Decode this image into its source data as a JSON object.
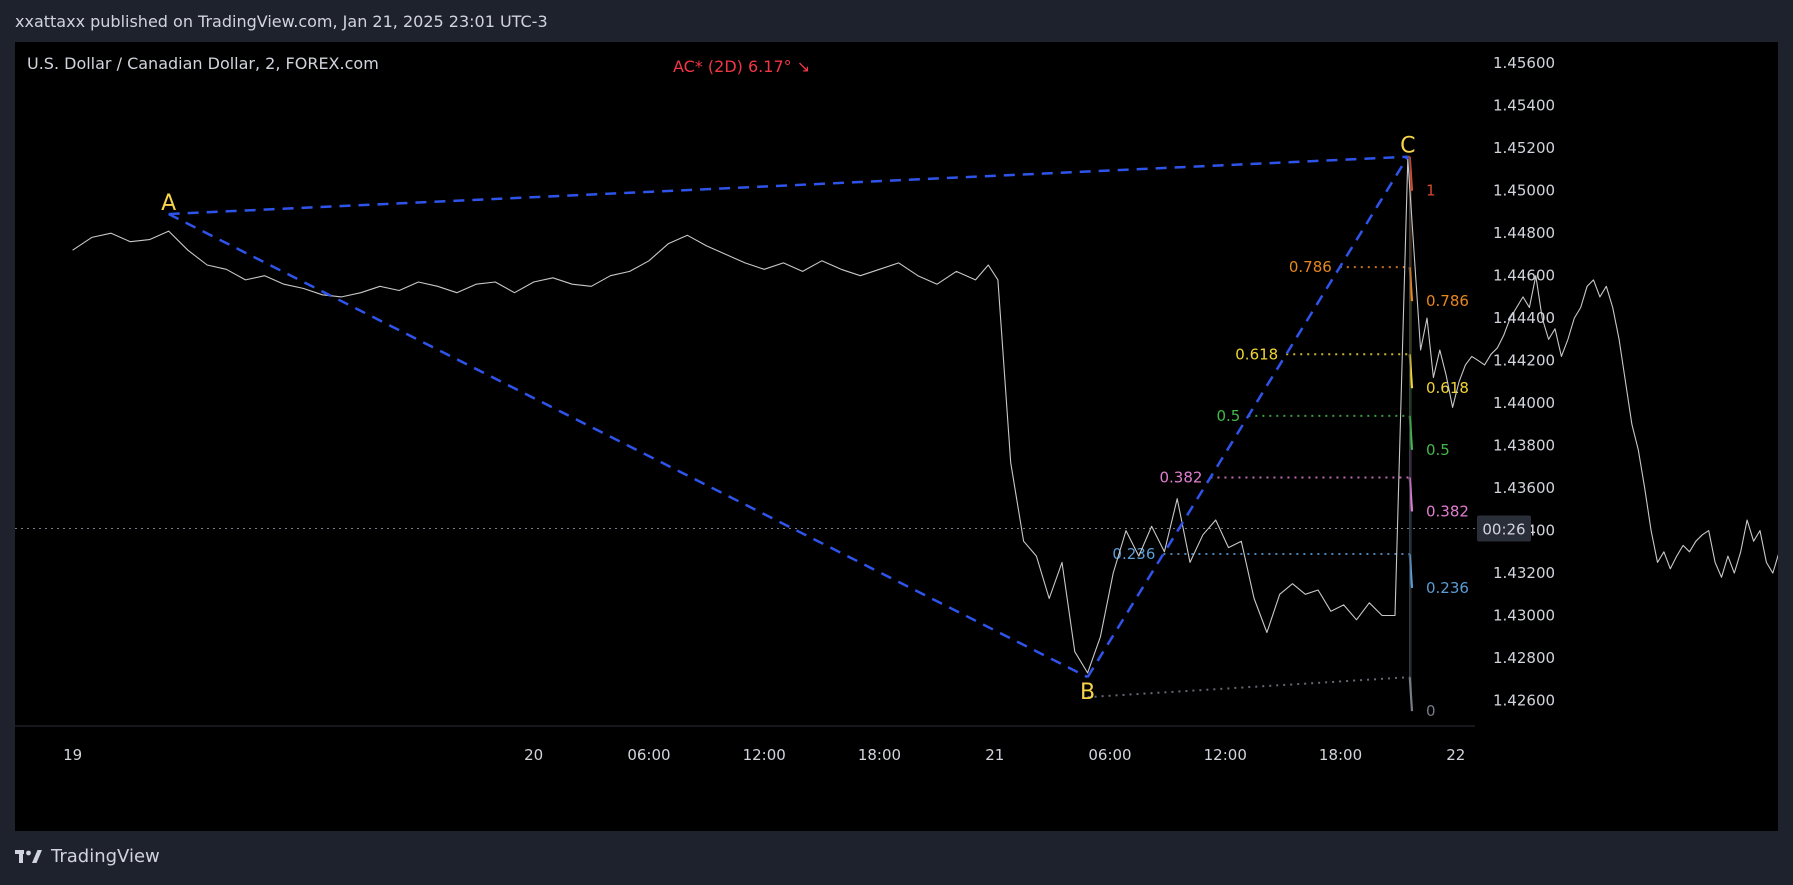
{
  "header": {
    "publish_line": "xxattaxx published on TradingView.com, Jan 21, 2025 23:01 UTC-3"
  },
  "symbol": {
    "title": "U.S. Dollar / Canadian Dollar, 2, FOREX.com"
  },
  "annotation": {
    "angle_label": "AC* (2D) 6.17°  ↘"
  },
  "footer": {
    "brand": "TradingView"
  },
  "price_badge": {
    "label": "00:26"
  },
  "colors": {
    "background": "#000000",
    "frame": "#1e222d",
    "text": "#d1d4dc",
    "pattern_line": "#2f54eb",
    "pivot_label": "#f7d44a",
    "price_line": "#c8c8c8"
  },
  "chart_data": {
    "type": "line",
    "title": "U.S. Dollar / Canadian Dollar, 2, FOREX.com",
    "xlabel": "",
    "ylabel": "",
    "x_range": [
      "2025-01-18T21:00",
      "2025-01-22T01:00"
    ],
    "ylim": [
      1.4248,
      1.457
    ],
    "y_axis_position": "right",
    "grid": false,
    "y_ticks": [
      "1.45600",
      "1.45400",
      "1.45200",
      "1.45000",
      "1.44800",
      "1.44600",
      "1.44400",
      "1.44200",
      "1.44000",
      "1.43800",
      "1.43600",
      "1.43400",
      "1.43200",
      "1.43000",
      "1.42800",
      "1.42600"
    ],
    "x_ticks": [
      {
        "label": "19",
        "t": "2025-01-19T00:00"
      },
      {
        "label": "20",
        "t": "2025-01-20T00:00"
      },
      {
        "label": "06:00",
        "t": "2025-01-20T06:00"
      },
      {
        "label": "12:00",
        "t": "2025-01-20T12:00"
      },
      {
        "label": "18:00",
        "t": "2025-01-20T18:00"
      },
      {
        "label": "21",
        "t": "2025-01-21T00:00"
      },
      {
        "label": "06:00",
        "t": "2025-01-21T06:00"
      },
      {
        "label": "12:00",
        "t": "2025-01-21T12:00"
      },
      {
        "label": "18:00",
        "t": "2025-01-21T18:00"
      },
      {
        "label": "22",
        "t": "2025-01-22T00:00"
      }
    ],
    "price_series": [
      {
        "t": "2025-01-19T00:00",
        "y": 1.4472
      },
      {
        "t": "2025-01-19T01:00",
        "y": 1.4478
      },
      {
        "t": "2025-01-19T02:00",
        "y": 1.448
      },
      {
        "t": "2025-01-19T03:00",
        "y": 1.4476
      },
      {
        "t": "2025-01-19T04:00",
        "y": 1.4477
      },
      {
        "t": "2025-01-19T05:00",
        "y": 1.4481
      },
      {
        "t": "2025-01-19T06:00",
        "y": 1.4472
      },
      {
        "t": "2025-01-19T07:00",
        "y": 1.4465
      },
      {
        "t": "2025-01-19T08:00",
        "y": 1.4463
      },
      {
        "t": "2025-01-19T09:00",
        "y": 1.4458
      },
      {
        "t": "2025-01-19T10:00",
        "y": 1.446
      },
      {
        "t": "2025-01-19T11:00",
        "y": 1.4456
      },
      {
        "t": "2025-01-19T12:00",
        "y": 1.4454
      },
      {
        "t": "2025-01-19T13:00",
        "y": 1.4451
      },
      {
        "t": "2025-01-19T14:00",
        "y": 1.445
      },
      {
        "t": "2025-01-19T15:00",
        "y": 1.4452
      },
      {
        "t": "2025-01-19T16:00",
        "y": 1.4455
      },
      {
        "t": "2025-01-19T17:00",
        "y": 1.4453
      },
      {
        "t": "2025-01-19T18:00",
        "y": 1.4457
      },
      {
        "t": "2025-01-19T19:00",
        "y": 1.4455
      },
      {
        "t": "2025-01-19T20:00",
        "y": 1.4452
      },
      {
        "t": "2025-01-19T21:00",
        "y": 1.4456
      },
      {
        "t": "2025-01-19T22:00",
        "y": 1.4457
      },
      {
        "t": "2025-01-19T23:00",
        "y": 1.4452
      },
      {
        "t": "2025-01-20T00:00",
        "y": 1.4457
      },
      {
        "t": "2025-01-20T01:00",
        "y": 1.4459
      },
      {
        "t": "2025-01-20T02:00",
        "y": 1.4456
      },
      {
        "t": "2025-01-20T03:00",
        "y": 1.4455
      },
      {
        "t": "2025-01-20T04:00",
        "y": 1.446
      },
      {
        "t": "2025-01-20T05:00",
        "y": 1.4462
      },
      {
        "t": "2025-01-20T06:00",
        "y": 1.4467
      },
      {
        "t": "2025-01-20T07:00",
        "y": 1.4475
      },
      {
        "t": "2025-01-20T08:00",
        "y": 1.4479
      },
      {
        "t": "2025-01-20T09:00",
        "y": 1.4474
      },
      {
        "t": "2025-01-20T10:00",
        "y": 1.447
      },
      {
        "t": "2025-01-20T11:00",
        "y": 1.4466
      },
      {
        "t": "2025-01-20T12:00",
        "y": 1.4463
      },
      {
        "t": "2025-01-20T13:00",
        "y": 1.4466
      },
      {
        "t": "2025-01-20T14:00",
        "y": 1.4462
      },
      {
        "t": "2025-01-20T15:00",
        "y": 1.4467
      },
      {
        "t": "2025-01-20T16:00",
        "y": 1.4463
      },
      {
        "t": "2025-01-20T17:00",
        "y": 1.446
      },
      {
        "t": "2025-01-20T18:00",
        "y": 1.4463
      },
      {
        "t": "2025-01-20T19:00",
        "y": 1.4466
      },
      {
        "t": "2025-01-20T20:00",
        "y": 1.446
      },
      {
        "t": "2025-01-20T21:00",
        "y": 1.4456
      },
      {
        "t": "2025-01-20T22:00",
        "y": 1.4462
      },
      {
        "t": "2025-01-20T23:00",
        "y": 1.4458
      },
      {
        "t": "2025-01-20T23:40",
        "y": 1.4465
      },
      {
        "t": "2025-01-21T00:10",
        "y": 1.4458
      },
      {
        "t": "2025-01-21T00:50",
        "y": 1.4372
      },
      {
        "t": "2025-01-21T01:30",
        "y": 1.4335
      },
      {
        "t": "2025-01-21T02:10",
        "y": 1.4328
      },
      {
        "t": "2025-01-21T02:50",
        "y": 1.4308
      },
      {
        "t": "2025-01-21T03:30",
        "y": 1.4325
      },
      {
        "t": "2025-01-21T04:10",
        "y": 1.4283
      },
      {
        "t": "2025-01-21T04:50",
        "y": 1.4273
      },
      {
        "t": "2025-01-21T05:30",
        "y": 1.429
      },
      {
        "t": "2025-01-21T06:10",
        "y": 1.432
      },
      {
        "t": "2025-01-21T06:50",
        "y": 1.434
      },
      {
        "t": "2025-01-21T07:30",
        "y": 1.4328
      },
      {
        "t": "2025-01-21T08:10",
        "y": 1.4342
      },
      {
        "t": "2025-01-21T08:50",
        "y": 1.433
      },
      {
        "t": "2025-01-21T09:30",
        "y": 1.4355
      },
      {
        "t": "2025-01-21T10:10",
        "y": 1.4325
      },
      {
        "t": "2025-01-21T10:50",
        "y": 1.4338
      },
      {
        "t": "2025-01-21T11:30",
        "y": 1.4345
      },
      {
        "t": "2025-01-21T12:10",
        "y": 1.4332
      },
      {
        "t": "2025-01-21T12:50",
        "y": 1.4335
      },
      {
        "t": "2025-01-21T13:30",
        "y": 1.4308
      },
      {
        "t": "2025-01-21T14:10",
        "y": 1.4292
      },
      {
        "t": "2025-01-21T14:50",
        "y": 1.431
      },
      {
        "t": "2025-01-21T15:30",
        "y": 1.4315
      },
      {
        "t": "2025-01-21T16:10",
        "y": 1.431
      },
      {
        "t": "2025-01-21T16:50",
        "y": 1.4312
      },
      {
        "t": "2025-01-21T17:30",
        "y": 1.4302
      },
      {
        "t": "2025-01-21T18:10",
        "y": 1.4305
      },
      {
        "t": "2025-01-21T18:50",
        "y": 1.4298
      },
      {
        "t": "2025-01-21T19:30",
        "y": 1.4306
      },
      {
        "t": "2025-01-21T20:10",
        "y": 1.43
      },
      {
        "t": "2025-01-21T20:50",
        "y": 1.43
      },
      {
        "t": "2025-01-21T21:30",
        "y": 1.4515
      },
      {
        "t": "2025-01-21T21:50",
        "y": 1.447
      },
      {
        "t": "2025-01-21T22:10",
        "y": 1.4425
      },
      {
        "t": "2025-01-21T22:30",
        "y": 1.444
      },
      {
        "t": "2025-01-21T22:50",
        "y": 1.4412
      },
      {
        "t": "2025-01-21T23:10",
        "y": 1.4425
      },
      {
        "t": "2025-01-21T23:30",
        "y": 1.4413
      },
      {
        "t": "2025-01-21T23:50",
        "y": 1.4398
      },
      {
        "t": "2025-01-22T00:10",
        "y": 1.441
      },
      {
        "t": "2025-01-22T00:30",
        "y": 1.4418
      },
      {
        "t": "2025-01-22T00:50",
        "y": 1.4422
      },
      {
        "t": "2025-01-22T01:10",
        "y": 1.442
      },
      {
        "t": "2025-01-22T01:30",
        "y": 1.4418
      },
      {
        "t": "2025-01-22T01:50",
        "y": 1.4423
      },
      {
        "t": "2025-01-22T02:10",
        "y": 1.4426
      },
      {
        "t": "2025-01-22T02:30",
        "y": 1.4432
      },
      {
        "t": "2025-01-22T02:50",
        "y": 1.444
      },
      {
        "t": "2025-01-22T03:10",
        "y": 1.4445
      },
      {
        "t": "2025-01-22T03:30",
        "y": 1.445
      },
      {
        "t": "2025-01-22T03:50",
        "y": 1.4445
      },
      {
        "t": "2025-01-22T04:10",
        "y": 1.446
      },
      {
        "t": "2025-01-22T04:30",
        "y": 1.444
      },
      {
        "t": "2025-01-22T04:50",
        "y": 1.443
      },
      {
        "t": "2025-01-22T05:10",
        "y": 1.4435
      },
      {
        "t": "2025-01-22T05:30",
        "y": 1.4422
      },
      {
        "t": "2025-01-22T05:50",
        "y": 1.443
      },
      {
        "t": "2025-01-22T06:10",
        "y": 1.444
      },
      {
        "t": "2025-01-22T06:30",
        "y": 1.4445
      },
      {
        "t": "2025-01-22T06:50",
        "y": 1.4455
      },
      {
        "t": "2025-01-22T07:10",
        "y": 1.4458
      },
      {
        "t": "2025-01-22T07:30",
        "y": 1.445
      },
      {
        "t": "2025-01-22T07:50",
        "y": 1.4455
      },
      {
        "t": "2025-01-22T08:10",
        "y": 1.4445
      },
      {
        "t": "2025-01-22T08:30",
        "y": 1.443
      },
      {
        "t": "2025-01-22T08:50",
        "y": 1.441
      },
      {
        "t": "2025-01-22T09:10",
        "y": 1.439
      },
      {
        "t": "2025-01-22T09:30",
        "y": 1.4378
      },
      {
        "t": "2025-01-22T09:50",
        "y": 1.436
      },
      {
        "t": "2025-01-22T10:10",
        "y": 1.434
      },
      {
        "t": "2025-01-22T10:30",
        "y": 1.4325
      },
      {
        "t": "2025-01-22T10:50",
        "y": 1.433
      },
      {
        "t": "2025-01-22T11:10",
        "y": 1.4322
      },
      {
        "t": "2025-01-22T11:30",
        "y": 1.4328
      },
      {
        "t": "2025-01-22T11:50",
        "y": 1.4333
      },
      {
        "t": "2025-01-22T12:10",
        "y": 1.433
      },
      {
        "t": "2025-01-22T12:30",
        "y": 1.4335
      },
      {
        "t": "2025-01-22T12:50",
        "y": 1.4338
      },
      {
        "t": "2025-01-22T13:10",
        "y": 1.434
      },
      {
        "t": "2025-01-22T13:30",
        "y": 1.4325
      },
      {
        "t": "2025-01-22T13:50",
        "y": 1.4318
      },
      {
        "t": "2025-01-22T14:10",
        "y": 1.4328
      },
      {
        "t": "2025-01-22T14:30",
        "y": 1.432
      },
      {
        "t": "2025-01-22T14:50",
        "y": 1.433
      },
      {
        "t": "2025-01-22T15:10",
        "y": 1.4345
      },
      {
        "t": "2025-01-22T15:30",
        "y": 1.4335
      },
      {
        "t": "2025-01-22T15:50",
        "y": 1.434
      },
      {
        "t": "2025-01-22T16:10",
        "y": 1.4325
      },
      {
        "t": "2025-01-22T16:30",
        "y": 1.432
      },
      {
        "t": "2025-01-22T16:50",
        "y": 1.433
      },
      {
        "t": "2025-01-22T17:10",
        "y": 1.4335
      }
    ],
    "pattern_points": [
      {
        "name": "A",
        "t": "2025-01-19T05:00",
        "y": 1.4489
      },
      {
        "name": "B",
        "t": "2025-01-21T04:50",
        "y": 1.4271
      },
      {
        "name": "C",
        "t": "2025-01-21T21:30",
        "y": 1.4516
      }
    ],
    "fib_levels": [
      {
        "name": "0",
        "y_start": 1.4271,
        "y_end": 1.4255,
        "color": "#787b86"
      },
      {
        "name": "0.236",
        "y_start": 1.4329,
        "y_end": 1.4313,
        "color": "#5b9cd6"
      },
      {
        "name": "0.382",
        "y_start": 1.4365,
        "y_end": 1.4349,
        "color": "#e07dd0"
      },
      {
        "name": "0.5",
        "y_start": 1.4394,
        "y_end": 1.4378,
        "color": "#43b849"
      },
      {
        "name": "0.618",
        "y_start": 1.4423,
        "y_end": 1.4407,
        "color": "#f0d435"
      },
      {
        "name": "0.786",
        "y_start": 1.4464,
        "y_end": 1.4448,
        "color": "#e8871e"
      },
      {
        "name": "1",
        "y_start": 1.4516,
        "y_end": 1.45,
        "color": "#d64a2c"
      }
    ],
    "fib_fills": [
      "#1c1f1e",
      "#18262c",
      "#2e1a36",
      "#0f3012",
      "#302d10",
      "#3a220c"
    ]
  }
}
